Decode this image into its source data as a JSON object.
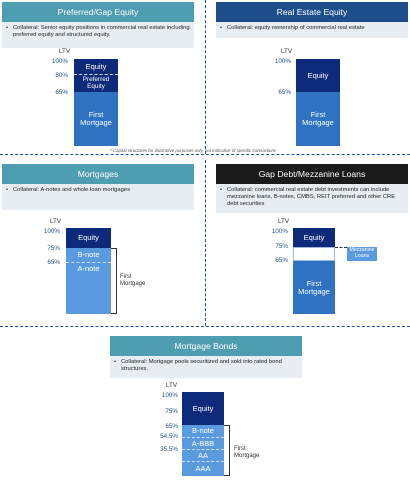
{
  "note": "* Capital structures for illustrative purposes only, not indicative of specific transactions",
  "panels": {
    "preferred": {
      "title": "Preferred/Gap Equity",
      "bullet": "•",
      "desc": "Collateral: Senior equity positions in commercial real estate including preferred equity and structured equity.",
      "ltv_header": "LTV",
      "ltv": [
        "100%",
        "80%",
        "65%"
      ],
      "boxes": [
        "Equity",
        "Preferred Equity",
        "First Mortgage"
      ]
    },
    "realestate": {
      "title": "Real Estate Equity",
      "bullet": "•",
      "desc": "Collateral: equity ownership of commercial real estate",
      "ltv_header": "LTV",
      "ltv": [
        "100%",
        "65%"
      ],
      "boxes": [
        "Equity",
        "First Mortgage"
      ]
    },
    "mortgages": {
      "title": "Mortgages",
      "bullet": "•",
      "desc": "Collateral: A-notes and whole loan mortgages",
      "ltv_header": "LTV",
      "ltv": [
        "100%",
        "75%",
        "65%"
      ],
      "boxes": [
        "Equity",
        "B-note",
        "A-note"
      ],
      "brace_label": "First Mortgage"
    },
    "gapdebt": {
      "title": "Gap Debt/Mezzanine Loans",
      "bullet": "•",
      "desc": "Collateral: commercial real estate debt investments can include mezzanine loans, B-notes, CMBS, REIT preferred and other CRE debt securities",
      "ltv_header": "LTV",
      "ltv": [
        "100%",
        "75%",
        "65%"
      ],
      "boxes": [
        "Equity",
        "Mezzanine Loans",
        "First Mortgage"
      ]
    },
    "bonds": {
      "title": "Mortgage Bonds",
      "bullet": "•",
      "desc": "Collateral: Mortgage pools securitized and sold into rated bond structures.",
      "ltv_header": "LTV",
      "ltv": [
        "100%",
        "75%",
        "65%",
        "54.5%",
        "35.5%"
      ],
      "boxes": [
        "Equity",
        "B-note",
        "A-BBB",
        "AA",
        "AAA"
      ],
      "brace_label": "First Mortgage"
    }
  }
}
